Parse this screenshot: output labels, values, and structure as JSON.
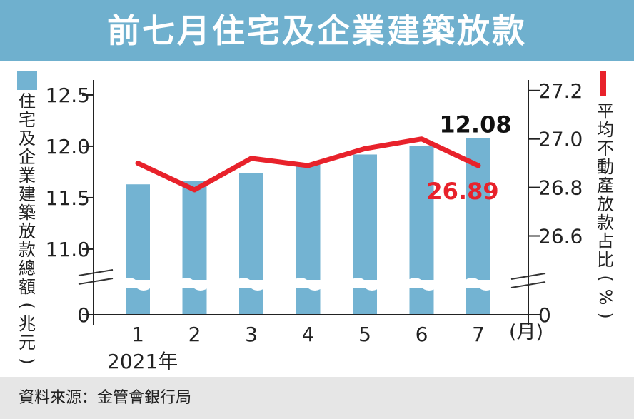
{
  "title": "前七月住宅及企業建築放款",
  "source": "資料來源：金管會銀行局",
  "colors": {
    "bar": "#73b3d2",
    "line": "#e8222b",
    "title_bg": "#6fb0ce",
    "footer_bg": "#e6e6e6"
  },
  "chart_data": {
    "type": "bar+line",
    "categories": [
      "1",
      "2",
      "3",
      "4",
      "5",
      "6",
      "7"
    ],
    "x_unit": "(月)",
    "year_label": "2021年",
    "series": [
      {
        "name": "住宅及企業建築放款總額(兆元)",
        "type": "bar",
        "axis": "left",
        "values": [
          11.63,
          11.66,
          11.74,
          11.82,
          11.92,
          12.0,
          12.08
        ]
      },
      {
        "name": "平均不動產放款占比(%)",
        "type": "line",
        "axis": "right",
        "values": [
          26.9,
          26.79,
          26.92,
          26.89,
          26.96,
          27.0,
          26.89
        ]
      }
    ],
    "left_axis": {
      "label": "住宅及企業建築放款總額(兆元)",
      "ticks": [
        "12.5",
        "12.0",
        "11.5",
        "11.0",
        "0"
      ],
      "range": [
        10.68,
        12.59
      ],
      "broken": true
    },
    "right_axis": {
      "label": "平均不動產放款占比(%)",
      "ticks": [
        "27.2",
        "27.0",
        "26.8",
        "26.6",
        "0"
      ],
      "range": [
        26.41,
        27.22
      ],
      "broken": true
    },
    "annotations": {
      "last_bar": "12.08",
      "last_line": "26.89"
    }
  }
}
